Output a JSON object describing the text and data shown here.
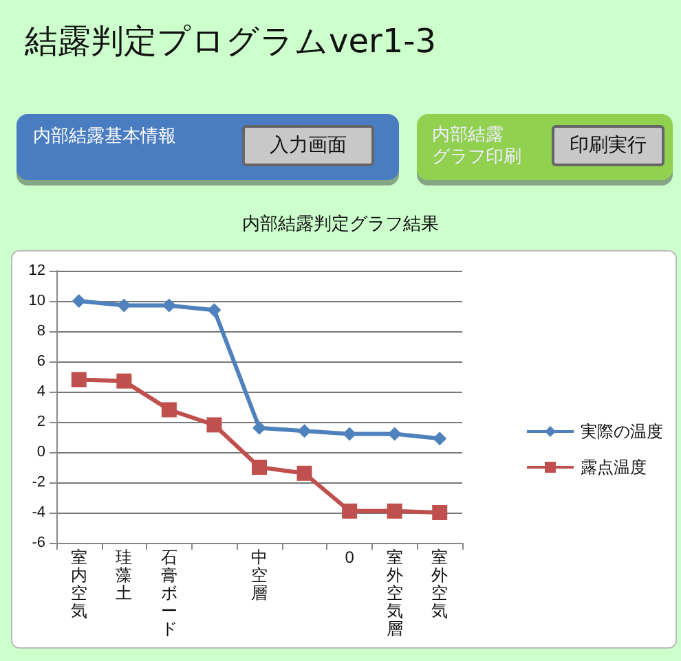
{
  "chart_data": {
    "type": "line",
    "title": "結露判定プログラムver1-3",
    "subtitle": "内部結露判定グラフ結果",
    "annotations": [
      "内部結露基本情報",
      "入力画面",
      "内部結露",
      "グラフ印刷",
      "印刷実行"
    ],
    "categories": [
      "室内空気",
      "珪藻土",
      "石膏ボード",
      null,
      "中空層",
      null,
      "0",
      "室外空気層",
      "室外空気"
    ],
    "series": [
      {
        "name": "実際の温度",
        "color": "#4f81bd",
        "marker": "diamond",
        "values": [
          10,
          9.7,
          9.7,
          9.4,
          1.6,
          1.4,
          1.2,
          1.2,
          0.9
        ]
      },
      {
        "name": "露点温度",
        "color": "#c0504d",
        "marker": "square",
        "values": [
          4.8,
          4.7,
          2.8,
          1.8,
          -1.0,
          -1.4,
          -3.9,
          -3.9,
          -4.0
        ]
      }
    ],
    "ylim": [
      -6,
      12
    ],
    "yticks": [
      -6,
      -4,
      -2,
      0,
      2,
      4,
      6,
      8,
      10,
      12
    ],
    "grid": "y",
    "legend": "right",
    "line_style": "solid"
  }
}
